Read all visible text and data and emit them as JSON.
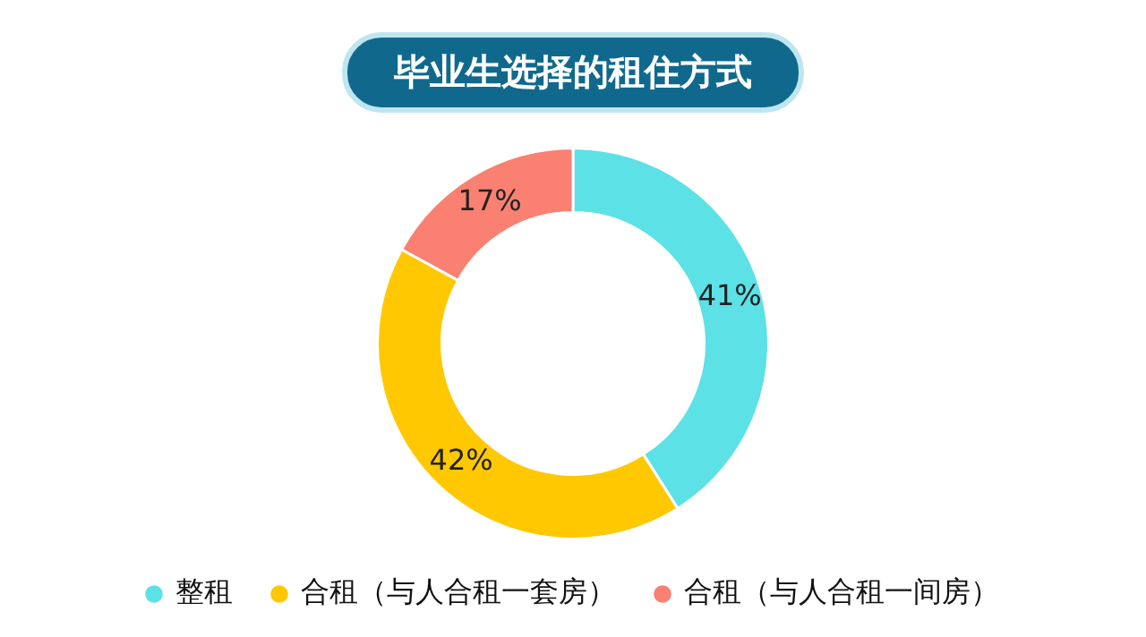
{
  "chart_data": {
    "type": "donut",
    "title": "毕业生选择的租住方式",
    "categories": [
      "整租",
      "合租（与人合租一套房）",
      "合租（与人合租一间房）"
    ],
    "values": [
      41,
      42,
      17
    ],
    "colors": [
      "#5ce1e6",
      "#ffc800",
      "#fa8072"
    ],
    "value_labels": [
      "41%",
      "42%",
      "17%"
    ],
    "legend": "bottom"
  }
}
